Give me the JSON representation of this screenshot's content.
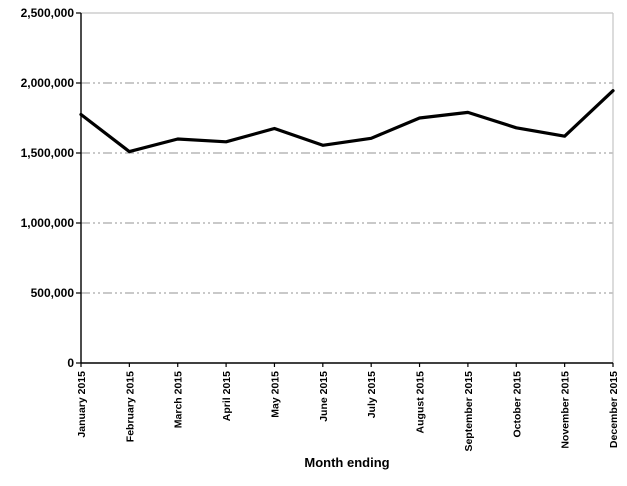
{
  "chart_data": {
    "type": "line",
    "title": "",
    "xlabel": "Month ending",
    "ylabel": "",
    "categories": [
      "January 2015",
      "February 2015",
      "March 2015",
      "April 2015",
      "May 2015",
      "June 2015",
      "July 2015",
      "August 2015",
      "September 2015",
      "October 2015",
      "November 2015",
      "December 2015"
    ],
    "values": [
      1775000,
      1510000,
      1600000,
      1580000,
      1675000,
      1555000,
      1605000,
      1750000,
      1790000,
      1680000,
      1620000,
      1945000
    ],
    "ylim": [
      0,
      2500000
    ],
    "ytick_interval": 500000,
    "ytick_labels": [
      "0",
      "500,000",
      "1,000,000",
      "1,500,000",
      "2,000,000",
      "2,500,000"
    ],
    "grid": "horizontal",
    "gridline_style": "dash-dot",
    "legend_position": "none",
    "colors": {
      "line": "#000000",
      "gridline": "#a9a9a9",
      "plot_border": "#c4c4c4",
      "axis": "#000000",
      "text": "#000000",
      "background": "#ffffff"
    }
  }
}
